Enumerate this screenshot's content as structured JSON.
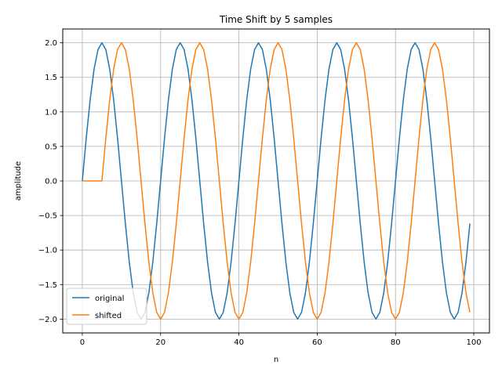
{
  "chart_data": {
    "type": "line",
    "title": "Time Shift by 5 samples",
    "xlabel": "n",
    "ylabel": "amplitude",
    "xlim": [
      -5,
      104
    ],
    "ylim": [
      -2.2,
      2.2
    ],
    "xticks": [
      0,
      20,
      40,
      60,
      80,
      100
    ],
    "yticks": [
      -2.0,
      -1.5,
      -1.0,
      -0.5,
      0.0,
      0.5,
      1.0,
      1.5,
      2.0
    ],
    "grid": true,
    "legend_position": "lower-left",
    "signal": {
      "amplitude": 2,
      "period": 20,
      "length": 100,
      "shift": 5
    },
    "series": [
      {
        "name": "original",
        "color": "#1f77b4",
        "shift": 0
      },
      {
        "name": "shifted",
        "color": "#ff7f0e",
        "shift": 5
      }
    ]
  }
}
